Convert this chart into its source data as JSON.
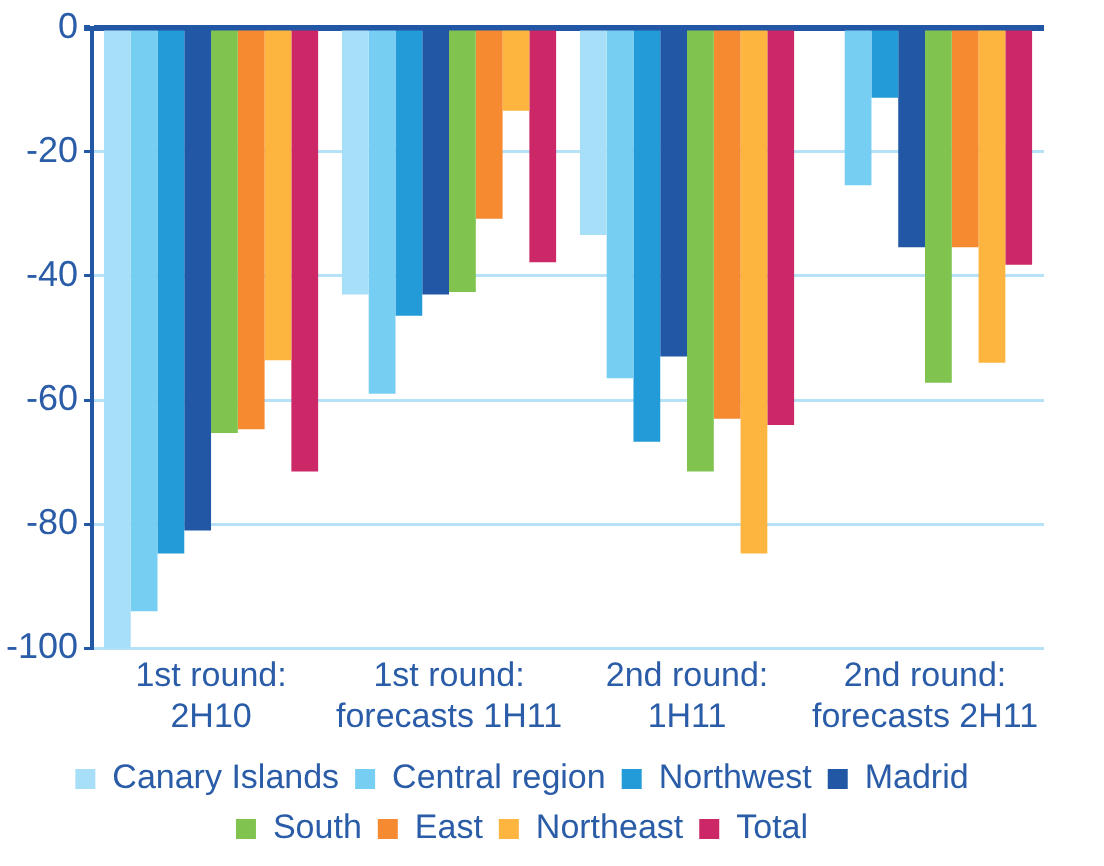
{
  "chart_data": {
    "type": "bar",
    "categories": [
      "1st round: 2H10",
      "1st round: forecasts 1H11",
      "2nd round: 1H11",
      "2nd round: forecasts 2H11"
    ],
    "series": [
      {
        "name": "Canary Islands",
        "color": "#a8dff8",
        "values": [
          -100,
          -43,
          -33.4,
          null
        ]
      },
      {
        "name": "Central region",
        "color": "#77cef3",
        "values": [
          -94,
          -59,
          -56.5,
          -25.4
        ]
      },
      {
        "name": "Northwest",
        "color": "#239bd8",
        "values": [
          -84.7,
          -46.4,
          -66.7,
          -11.3
        ]
      },
      {
        "name": "Madrid",
        "color": "#2257a6",
        "values": [
          -81,
          -43,
          -53,
          -35.4
        ]
      },
      {
        "name": "South",
        "color": "#80c34f",
        "values": [
          -65.3,
          -42.6,
          -71.5,
          -57.2
        ]
      },
      {
        "name": "East",
        "color": "#f58a30",
        "values": [
          -64.7,
          -30.8,
          -63,
          -35.4
        ]
      },
      {
        "name": "Northeast",
        "color": "#fdb53f",
        "values": [
          -53.6,
          -13.4,
          -84.7,
          -54
        ]
      },
      {
        "name": "Total",
        "color": "#cc2868",
        "values": [
          -71.5,
          -37.8,
          -64,
          -38.2
        ]
      }
    ],
    "ylim": [
      -100,
      0
    ],
    "yticks": [
      -100,
      -80,
      -60,
      -40,
      -20,
      0
    ],
    "grid": "y",
    "legend": "bottom"
  }
}
